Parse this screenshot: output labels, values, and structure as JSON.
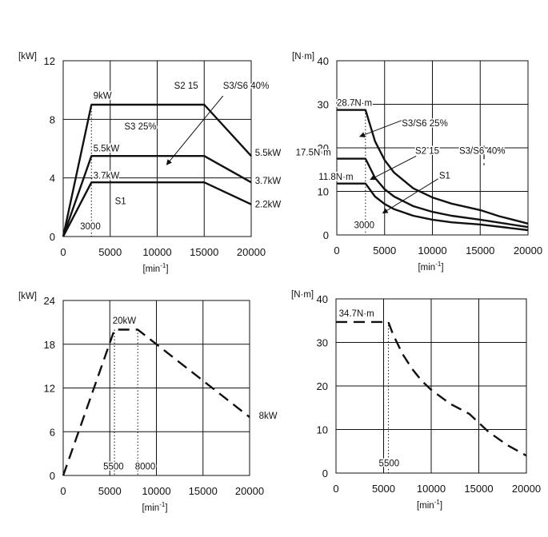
{
  "chart_data": [
    {
      "type": "line",
      "y_unit": "[kW]",
      "x_unit_prefix": "​",
      "x_unit": "[min",
      "x_unit_sup": "-1",
      "x_unit_suffix": "]",
      "xlim": [
        0,
        20000
      ],
      "ylim": [
        0,
        12
      ],
      "x_ticks": [
        0,
        5000,
        10000,
        15000,
        20000
      ],
      "y_ticks": [
        0,
        4,
        8,
        12
      ],
      "series": [
        {
          "x": [
            0,
            3000,
            15000,
            20000
          ],
          "y": [
            0,
            9,
            9,
            5.5
          ],
          "style": "solid"
        },
        {
          "x": [
            0,
            3000,
            15000,
            20000
          ],
          "y": [
            0,
            5.5,
            5.5,
            3.7
          ],
          "style": "solid"
        },
        {
          "x": [
            0,
            3000,
            15000,
            20000
          ],
          "y": [
            0,
            3.7,
            3.7,
            2.2
          ],
          "style": "solid"
        }
      ],
      "guides": [
        {
          "x": 3000,
          "y": 9
        }
      ],
      "annotations": [
        {
          "text": "9kW",
          "x": 3200,
          "y": 9.4,
          "anchor": "start"
        },
        {
          "text": "5.5kW",
          "x": 3200,
          "y": 5.8,
          "anchor": "start"
        },
        {
          "text": "3.7kW",
          "x": 3200,
          "y": 3.95,
          "anchor": "start"
        },
        {
          "text": "S3 25%",
          "x": 6500,
          "y": 7.3,
          "anchor": "start"
        },
        {
          "text": "S1",
          "x": 5500,
          "y": 2.2,
          "anchor": "start"
        },
        {
          "text": "S2 15",
          "x": 11800,
          "y": 10.1,
          "anchor": "start"
        },
        {
          "text": "S3/S6 40%",
          "x": 17000,
          "y": 10.1,
          "anchor": "start"
        },
        {
          "text": "5.5kW",
          "x": 20400,
          "y": 5.5,
          "anchor": "start"
        },
        {
          "text": "3.7kW",
          "x": 20400,
          "y": 3.6,
          "anchor": "start"
        },
        {
          "text": "2.2kW",
          "x": 20400,
          "y": 2.0,
          "anchor": "start"
        },
        {
          "text": "3000",
          "x": 1800,
          "y": 0.5,
          "anchor": "start"
        }
      ],
      "arrows": [
        {
          "from": [
            17000,
            9.6
          ],
          "to": [
            11000,
            4.9
          ]
        }
      ]
    },
    {
      "type": "line",
      "y_unit": "[N·m]",
      "x_unit_prefix": "",
      "x_unit": "[min",
      "x_unit_sup": "-1",
      "x_unit_suffix": "]",
      "xlim": [
        0,
        20000
      ],
      "ylim": [
        0,
        40
      ],
      "x_ticks": [
        0,
        5000,
        10000,
        15000,
        20000
      ],
      "y_ticks": [
        0,
        10,
        20,
        30,
        40
      ],
      "series": [
        {
          "x": [
            0,
            3000,
            4000,
            5000,
            6000,
            8000,
            10000,
            12000,
            15000,
            17000,
            20000
          ],
          "y": [
            28.7,
            28.7,
            21.5,
            17.2,
            14.3,
            10.7,
            8.6,
            7.2,
            5.7,
            4.3,
            2.6
          ],
          "style": "solid"
        },
        {
          "x": [
            0,
            3000,
            4000,
            5000,
            6000,
            8000,
            10000,
            12000,
            15000,
            20000
          ],
          "y": [
            17.5,
            17.5,
            13.1,
            10.5,
            8.8,
            6.6,
            5.3,
            4.4,
            3.5,
            1.8
          ],
          "style": "solid"
        },
        {
          "x": [
            0,
            3000,
            4000,
            5000,
            6000,
            8000,
            10000,
            12000,
            15000,
            20000
          ],
          "y": [
            11.8,
            11.8,
            8.8,
            7.1,
            5.9,
            4.4,
            3.5,
            2.9,
            2.4,
            1.1
          ],
          "style": "solid"
        }
      ],
      "guides": [
        {
          "x": 3000,
          "y": 28.7
        }
      ],
      "annotations": [
        {
          "text": "28.7N·m",
          "x": 0,
          "y": 29.6,
          "anchor": "start"
        },
        {
          "text": "17.5N·m",
          "x": -4300,
          "y": 18.3,
          "anchor": "start"
        },
        {
          "text": "11.8N·m",
          "x": -1900,
          "y": 12.7,
          "anchor": "start"
        },
        {
          "text": "S3/S6 25%",
          "x": 6800,
          "y": 25.0,
          "anchor": "start"
        },
        {
          "text": "S2 15",
          "x": 8200,
          "y": 18.6,
          "anchor": "start"
        },
        {
          "text": "S3/S6 40%",
          "x": 12800,
          "y": 18.6,
          "anchor": "start"
        },
        {
          "text": "S1",
          "x": 10700,
          "y": 12.9,
          "anchor": "start"
        },
        {
          "text": "3000",
          "x": 1800,
          "y": 1.6,
          "anchor": "start"
        }
      ],
      "arrows": [
        {
          "from": [
            6800,
            26.3
          ],
          "to": [
            2400,
            22.6
          ]
        },
        {
          "from": [
            8300,
            18.1
          ],
          "to": [
            3500,
            12.7
          ]
        },
        {
          "from": [
            10600,
            12.9
          ],
          "to": [
            4800,
            5.0
          ]
        }
      ],
      "extra_dashes": [
        {
          "x": 15400,
          "y1": 20.5,
          "y2": 16.0
        }
      ]
    },
    {
      "type": "line",
      "y_unit": "[kW]",
      "x_unit_prefix": "",
      "x_unit": "[min",
      "x_unit_sup": "-1",
      "x_unit_suffix": "]",
      "xlim": [
        0,
        20000
      ],
      "ylim": [
        0,
        24
      ],
      "x_ticks": [
        0,
        5000,
        10000,
        15000,
        20000
      ],
      "y_ticks": [
        0,
        6,
        12,
        18,
        24
      ],
      "series": [
        {
          "x": [
            0,
            5500,
            8000,
            20000
          ],
          "y": [
            0,
            20,
            20,
            8
          ],
          "style": "dash"
        }
      ],
      "guides": [
        {
          "x": 5500,
          "y": 20
        },
        {
          "x": 8000,
          "y": 20
        }
      ],
      "annotations": [
        {
          "text": "20kW",
          "x": 5300,
          "y": 20.8,
          "anchor": "start"
        },
        {
          "text": "8kW",
          "x": 21000,
          "y": 7.8,
          "anchor": "start"
        },
        {
          "text": "5500",
          "x": 4300,
          "y": 0.8,
          "anchor": "start"
        },
        {
          "text": "8000",
          "x": 7700,
          "y": 0.8,
          "anchor": "start"
        }
      ],
      "arrows": []
    },
    {
      "type": "line",
      "y_unit": "[N·m]",
      "x_unit_prefix": "",
      "x_unit": "[min",
      "x_unit_sup": "-1",
      "x_unit_suffix": "]",
      "xlim": [
        0,
        20000
      ],
      "ylim": [
        0,
        40
      ],
      "x_ticks": [
        0,
        5000,
        10000,
        15000,
        20000
      ],
      "y_ticks": [
        0,
        10,
        20,
        30,
        40
      ],
      "series": [
        {
          "x": [
            0,
            5500,
            6000,
            7000,
            8000,
            9000,
            10000,
            12000,
            14000,
            16000,
            18000,
            20000
          ],
          "y": [
            34.7,
            34.7,
            31.8,
            27.3,
            23.9,
            21.2,
            19.1,
            15.9,
            13.6,
            9.5,
            6.4,
            4.0
          ],
          "style": "dash"
        }
      ],
      "guides": [
        {
          "x": 5500,
          "y": 34.7
        }
      ],
      "annotations": [
        {
          "text": "34.7N·m",
          "x": 300,
          "y": 36.0,
          "anchor": "start"
        },
        {
          "text": "5500",
          "x": 4500,
          "y": 1.6,
          "anchor": "start"
        }
      ],
      "arrows": []
    }
  ]
}
